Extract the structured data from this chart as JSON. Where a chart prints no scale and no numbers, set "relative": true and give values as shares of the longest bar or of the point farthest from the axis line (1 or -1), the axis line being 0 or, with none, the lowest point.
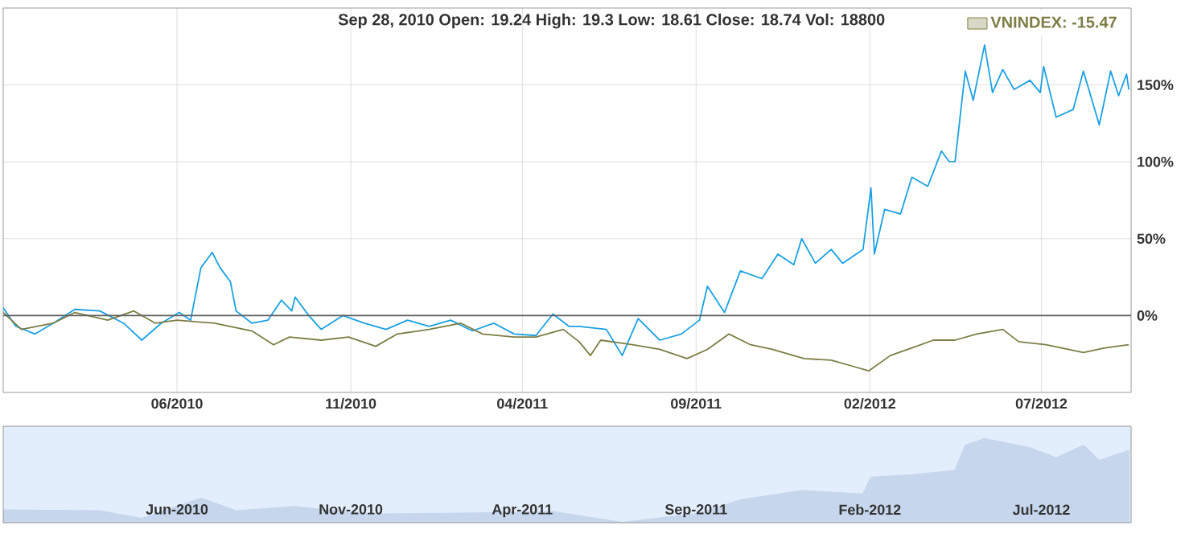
{
  "chart_data": [
    {
      "type": "line",
      "annotations": [
        "Sep 28, 2010 Open: 19.24 High: 19.3 Low: 18.61 Close: 18.74 Vol: 18800"
      ],
      "xlim": [
        "2009-12-30",
        "2012-09-18"
      ],
      "xticks": [
        {
          "value": "2010-06-01",
          "label": "06/2010"
        },
        {
          "value": "2010-11-01",
          "label": "11/2010"
        },
        {
          "value": "2011-04-01",
          "label": "04/2011"
        },
        {
          "value": "2011-09-01",
          "label": "09/2011"
        },
        {
          "value": "2012-02-01",
          "label": "02/2012"
        },
        {
          "value": "2012-07-01",
          "label": "07/2012"
        }
      ],
      "ylim": [
        -50,
        200
      ],
      "yticks": [
        {
          "value": 0,
          "label": "0%"
        },
        {
          "value": 50,
          "label": "50%"
        },
        {
          "value": 100,
          "label": "100%"
        },
        {
          "value": 150,
          "label": "150%"
        }
      ],
      "grid": true,
      "legend": "top right",
      "ref_lines": [
        {
          "axis": "y",
          "value": 0,
          "color": "#606060"
        }
      ],
      "series": [
        {
          "color": "#1ba1e2",
          "x": [
            "2009-12-30",
            "2010-01-10",
            "2010-01-27",
            "2010-02-12",
            "2010-03-03",
            "2010-03-25",
            "2010-04-15",
            "2010-05-01",
            "2010-05-18",
            "2010-06-03",
            "2010-06-13",
            "2010-06-22",
            "2010-07-02",
            "2010-07-09",
            "2010-07-18",
            "2010-07-23",
            "2010-08-06",
            "2010-08-20",
            "2010-09-01",
            "2010-09-10",
            "2010-09-13",
            "2010-09-25",
            "2010-10-06",
            "2010-10-25",
            "2010-11-13",
            "2010-12-02",
            "2010-12-21",
            "2011-01-09",
            "2011-01-28",
            "2011-02-16",
            "2011-03-07",
            "2011-03-25",
            "2011-04-13",
            "2011-04-28",
            "2011-05-12",
            "2011-05-21",
            "2011-06-14",
            "2011-06-28",
            "2011-07-12",
            "2011-07-31",
            "2011-08-19",
            "2011-09-04",
            "2011-09-11",
            "2011-09-26",
            "2011-10-10",
            "2011-10-29",
            "2011-11-12",
            "2011-11-26",
            "2011-12-03",
            "2011-12-15",
            "2011-12-29",
            "2012-01-08",
            "2012-01-26",
            "2012-02-02",
            "2012-02-05",
            "2012-02-14",
            "2012-02-28",
            "2012-03-09",
            "2012-03-23",
            "2012-04-04",
            "2012-04-11",
            "2012-04-16",
            "2012-04-25",
            "2012-05-02",
            "2012-05-12",
            "2012-05-19",
            "2012-05-28",
            "2012-06-07",
            "2012-06-21",
            "2012-06-30",
            "2012-07-03",
            "2012-07-14",
            "2012-07-29",
            "2012-08-07",
            "2012-08-21",
            "2012-08-31",
            "2012-09-07",
            "2012-09-14",
            "2012-09-16"
          ],
          "values": [
            5,
            -7,
            -12,
            -5,
            4,
            3,
            -5,
            -16,
            -5,
            2,
            -3,
            31,
            41,
            31,
            22,
            3,
            -5,
            -3,
            10,
            3,
            12,
            0,
            -9,
            0,
            -5,
            -9,
            -3,
            -7,
            -3,
            -10,
            -5,
            -12,
            -13,
            1,
            -7,
            -7,
            -9,
            -26,
            -2,
            -16,
            -12,
            -3,
            19,
            2,
            29,
            24,
            40,
            33,
            50,
            34,
            43,
            34,
            43,
            83,
            40,
            69,
            66,
            90,
            84,
            107,
            100,
            100,
            159,
            140,
            176,
            145,
            160,
            147,
            153,
            145,
            162,
            129,
            134,
            159,
            124,
            159,
            143,
            157,
            147
          ]
        },
        {
          "name": "VNINDEX: -15.47",
          "color": "#7d7d45",
          "x": [
            "2009-12-30",
            "2010-01-15",
            "2010-02-12",
            "2010-03-03",
            "2010-04-01",
            "2010-04-24",
            "2010-05-13",
            "2010-06-01",
            "2010-07-04",
            "2010-08-06",
            "2010-08-25",
            "2010-09-08",
            "2010-10-06",
            "2010-10-30",
            "2010-11-23",
            "2010-12-12",
            "2011-01-09",
            "2011-02-06",
            "2011-02-25",
            "2011-03-25",
            "2011-04-13",
            "2011-05-07",
            "2011-05-21",
            "2011-05-31",
            "2011-06-09",
            "2011-07-07",
            "2011-07-31",
            "2011-08-24",
            "2011-09-11",
            "2011-09-30",
            "2011-10-19",
            "2011-11-07",
            "2011-12-05",
            "2011-12-29",
            "2012-01-17",
            "2012-01-31",
            "2012-02-19",
            "2012-03-09",
            "2012-03-28",
            "2012-04-16",
            "2012-05-05",
            "2012-05-28",
            "2012-06-11",
            "2012-07-05",
            "2012-08-07",
            "2012-08-26",
            "2012-09-16"
          ],
          "values": [
            2,
            -9,
            -5,
            2,
            -3,
            3,
            -5,
            -3,
            -5,
            -10,
            -19,
            -14,
            -16,
            -14,
            -20,
            -12,
            -9,
            -5,
            -12,
            -14,
            -14,
            -9,
            -17,
            -26,
            -16,
            -19,
            -22,
            -28,
            -22,
            -12,
            -19,
            -22,
            -28,
            -29,
            -33,
            -36,
            -26,
            -21,
            -16,
            -16,
            -12,
            -9,
            -17,
            -19,
            -24,
            -21,
            -19
          ]
        }
      ]
    },
    {
      "type": "area",
      "relative": true,
      "tick_labels": "x",
      "xlim": [
        "2009-12-30",
        "2012-09-18"
      ],
      "xticks": [
        {
          "value": "2010-06-01",
          "label": "Jun-2010"
        },
        {
          "value": "2010-11-01",
          "label": "Nov-2010"
        },
        {
          "value": "2011-04-01",
          "label": "Apr-2011"
        },
        {
          "value": "2011-09-01",
          "label": "Sep-2011"
        },
        {
          "value": "2012-02-01",
          "label": "Feb-2012"
        },
        {
          "value": "2012-07-01",
          "label": "Jul-2012"
        }
      ],
      "series": [
        {
          "color": "#c6d6ec",
          "x": [
            "2009-12-30",
            "2010-03-25",
            "2010-05-01",
            "2010-06-22",
            "2010-07-23",
            "2010-09-13",
            "2010-11-13",
            "2011-01-28",
            "2011-04-28",
            "2011-06-28",
            "2011-09-04",
            "2011-10-10",
            "2011-12-03",
            "2012-01-26",
            "2012-02-02",
            "2012-03-09",
            "2012-04-16",
            "2012-04-25",
            "2012-05-12",
            "2012-06-21",
            "2012-07-14",
            "2012-08-07",
            "2012-08-21",
            "2012-09-16"
          ],
          "values": [
            0.15,
            0.14,
            0.05,
            0.29,
            0.14,
            0.19,
            0.1,
            0.11,
            0.13,
            0,
            0.11,
            0.27,
            0.38,
            0.34,
            0.54,
            0.57,
            0.62,
            0.92,
            1,
            0.89,
            0.77,
            0.92,
            0.74,
            0.86
          ]
        }
      ]
    }
  ]
}
